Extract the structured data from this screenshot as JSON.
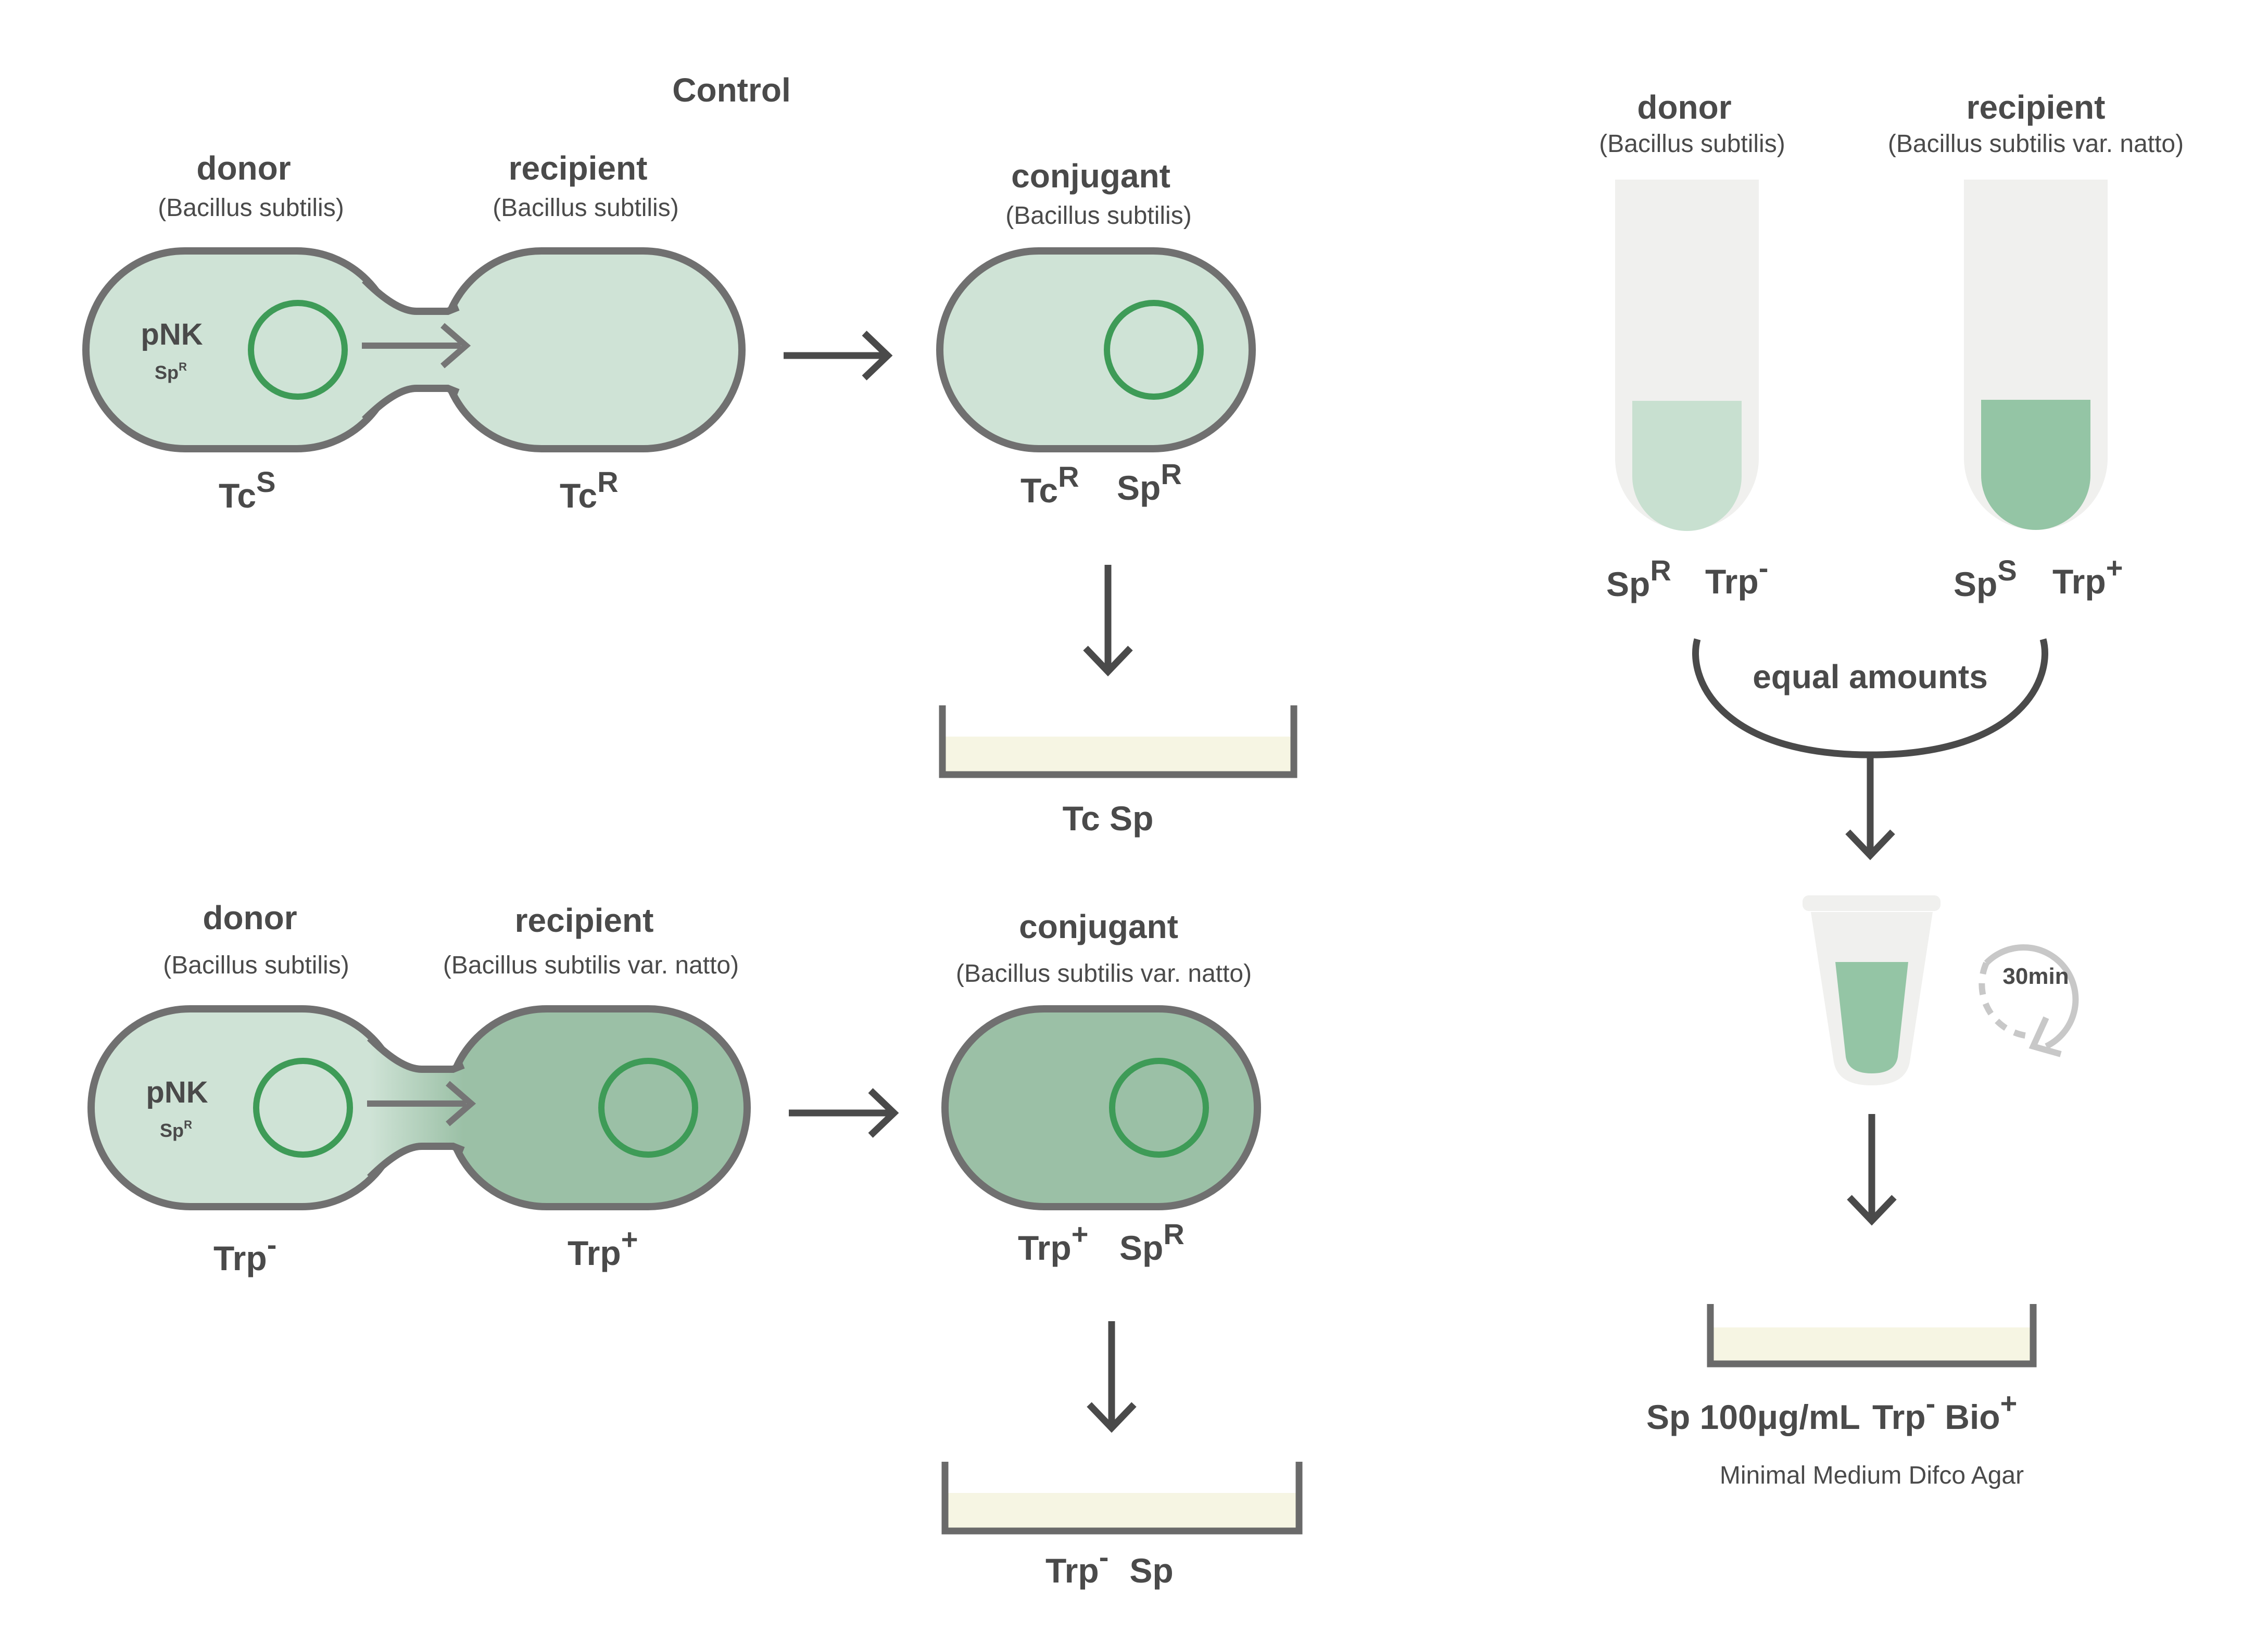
{
  "control_heading": "Control",
  "organisms": {
    "donor": "donor",
    "recipient": "recipient",
    "conjugant": "conjugant",
    "bs": "(Bacillus subtilis)",
    "bsn": "(Bacillus subtilis var. natto)"
  },
  "plasmid": {
    "name": "pNK",
    "marker": "Sp",
    "marker_sup": "R"
  },
  "control": {
    "donor_marker": {
      "base": "Tc",
      "sup": "S"
    },
    "recipient_marker": {
      "base": "Tc",
      "sup": "R"
    },
    "conjugant_marker_1": {
      "base": "Tc",
      "sup": "R"
    },
    "conjugant_marker_2": {
      "base": "Sp",
      "sup": "R"
    },
    "plate_label": "Tc Sp"
  },
  "experiment": {
    "donor_marker": {
      "base": "Trp",
      "sup": "-"
    },
    "recipient_marker": {
      "base": "Trp",
      "sup": "+"
    },
    "conjugant_marker_1": {
      "base": "Trp",
      "sup": "+"
    },
    "conjugant_marker_2": {
      "base": "Sp",
      "sup": "R"
    },
    "plate_label_base": "Trp",
    "plate_label_sup": "-",
    "plate_label_rest": "Sp"
  },
  "protocol": {
    "donor_tube_marker_1": {
      "base": "Sp",
      "sup": "R"
    },
    "donor_tube_marker_2": {
      "base": "Trp",
      "sup": "-"
    },
    "recipient_tube_marker_1": {
      "base": "Sp",
      "sup": "S"
    },
    "recipient_tube_marker_2": {
      "base": "Trp",
      "sup": "+"
    },
    "mix_label": "equal amounts",
    "incubation": "30min",
    "plate_label": {
      "sp": "Sp 100μg/mL",
      "trp": "Trp",
      "trp_sup": "-",
      "bio": "Bio",
      "bio_sup": "+"
    },
    "medium": "Minimal Medium Difco Agar"
  },
  "colors": {
    "cell_light": "#cfe3d6",
    "cell_dark": "#9bc0a6",
    "outline": "#707070",
    "plasmid": "#3e9b57",
    "arrow": "#4a4a4a",
    "transfer_arrow": "#757575",
    "agar": "#f6f5e3",
    "tube": "#f0f0ee",
    "liquid_light": "#c8e0d0",
    "liquid_dark": "#94c5a5",
    "timer": "#c8c8c8"
  }
}
